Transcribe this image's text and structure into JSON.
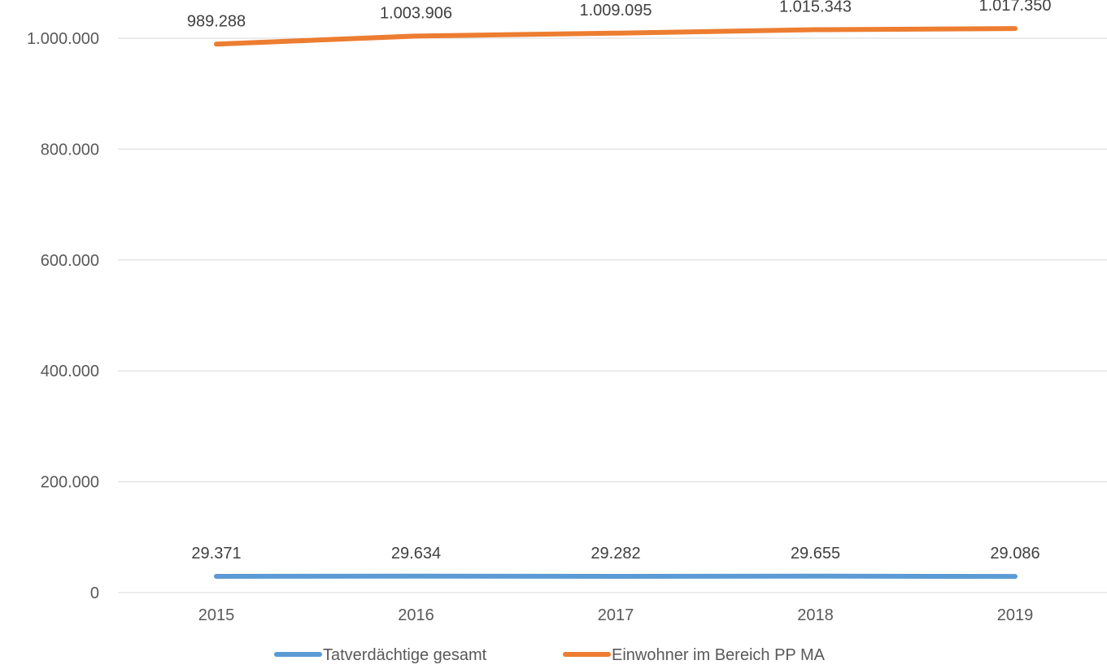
{
  "chart_data": {
    "type": "line",
    "title": "",
    "xlabel": "",
    "ylabel": "",
    "categories": [
      "2015",
      "2016",
      "2017",
      "2018",
      "2019"
    ],
    "ylim": [
      0,
      1000000
    ],
    "yticks": [
      0,
      200000,
      400000,
      600000,
      800000,
      1000000
    ],
    "ytick_labels": [
      "0",
      "200.000",
      "400.000",
      "600.000",
      "800.000",
      "1.000.000"
    ],
    "grid": true,
    "legend_position": "bottom",
    "series": [
      {
        "name": "Tatverdächtige gesamt",
        "color": "#5b9bd5",
        "values": [
          29371,
          29634,
          29282,
          29655,
          29086
        ],
        "labels": [
          "29.371",
          "29.634",
          "29.282",
          "29.655",
          "29.086"
        ]
      },
      {
        "name": "Einwohner im Bereich PP MA",
        "color": "#ed7d31",
        "values": [
          989288,
          1003906,
          1009095,
          1015343,
          1017350
        ],
        "labels": [
          "989.288",
          "1.003.906",
          "1.009.095",
          "1.015.343",
          "1.017.350"
        ]
      }
    ]
  }
}
